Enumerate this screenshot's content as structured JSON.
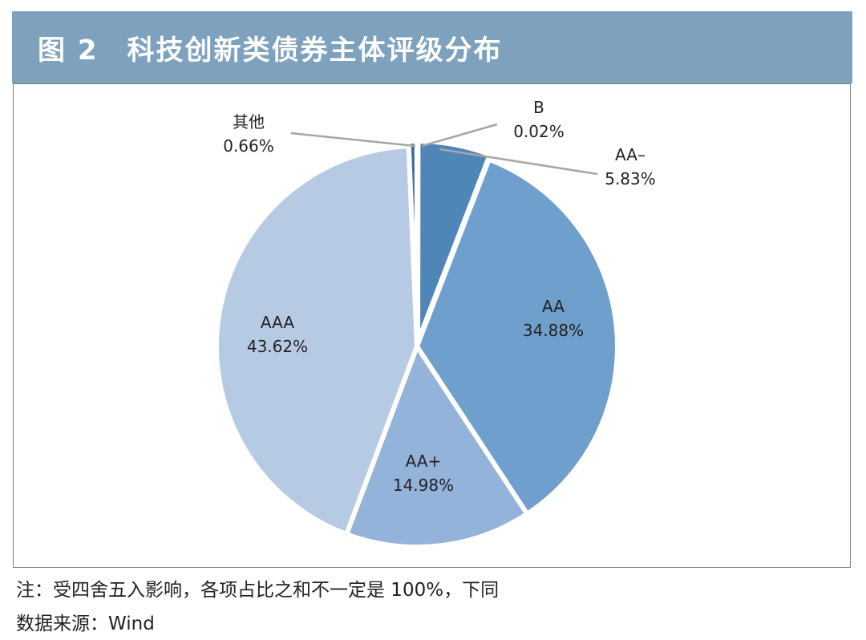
{
  "title": "图 2　科技创新类债券主体评级分布",
  "note": "注：受四舍五入影响，各项占比之和不一定是 100%，下同",
  "source": "数据来源：Wind",
  "colors": {
    "title_bar": "#7ea2bd",
    "frame": "#7f7f7f",
    "leader": "#a6a6a6"
  },
  "chart_data": {
    "type": "pie",
    "slices": [
      {
        "name": "B",
        "value": 0.02,
        "value_label": "0.02%",
        "color": "#5b7fa6"
      },
      {
        "name": "AA–",
        "value": 5.83,
        "value_label": "5.83%",
        "color": "#4f86b8"
      },
      {
        "name": "AA",
        "value": 34.88,
        "value_label": "34.88%",
        "color": "#6f9fcd"
      },
      {
        "name": "AA+",
        "value": 14.98,
        "value_label": "14.98%",
        "color": "#93b3db"
      },
      {
        "name": "AAA",
        "value": 43.62,
        "value_label": "43.62%",
        "color": "#b6cae3"
      },
      {
        "name": "其他",
        "value": 0.66,
        "value_label": "0.66%",
        "color": "#3f6f9e"
      }
    ]
  }
}
